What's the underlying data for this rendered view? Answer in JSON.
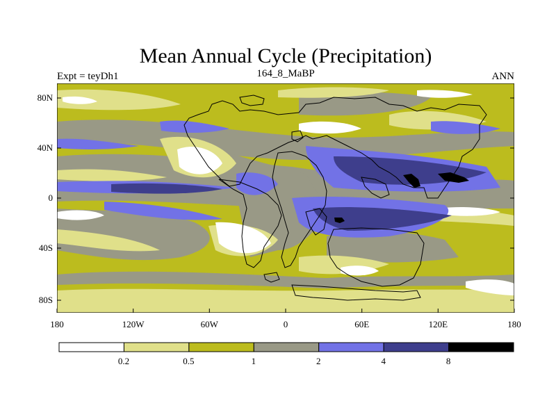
{
  "title": "Mean Annual Cycle (Precipitation)",
  "left_string": "Expt = teyDh1",
  "center_string": "164_8_MaBP",
  "right_string": "ANN",
  "lon_ticks": [
    "180",
    "120W",
    "60W",
    "0",
    "60E",
    "120E",
    "180"
  ],
  "lat_ticks": [
    "80N",
    "40N",
    "0",
    "40S",
    "80S"
  ],
  "colorbar": {
    "labels": [
      "0.2",
      "0.5",
      "1",
      "2",
      "4",
      "8"
    ],
    "colors": [
      "#ffffff",
      "#e0e08a",
      "#bcbc1e",
      "#999986",
      "#7272e6",
      "#3e3e8c",
      "#000000"
    ]
  }
}
